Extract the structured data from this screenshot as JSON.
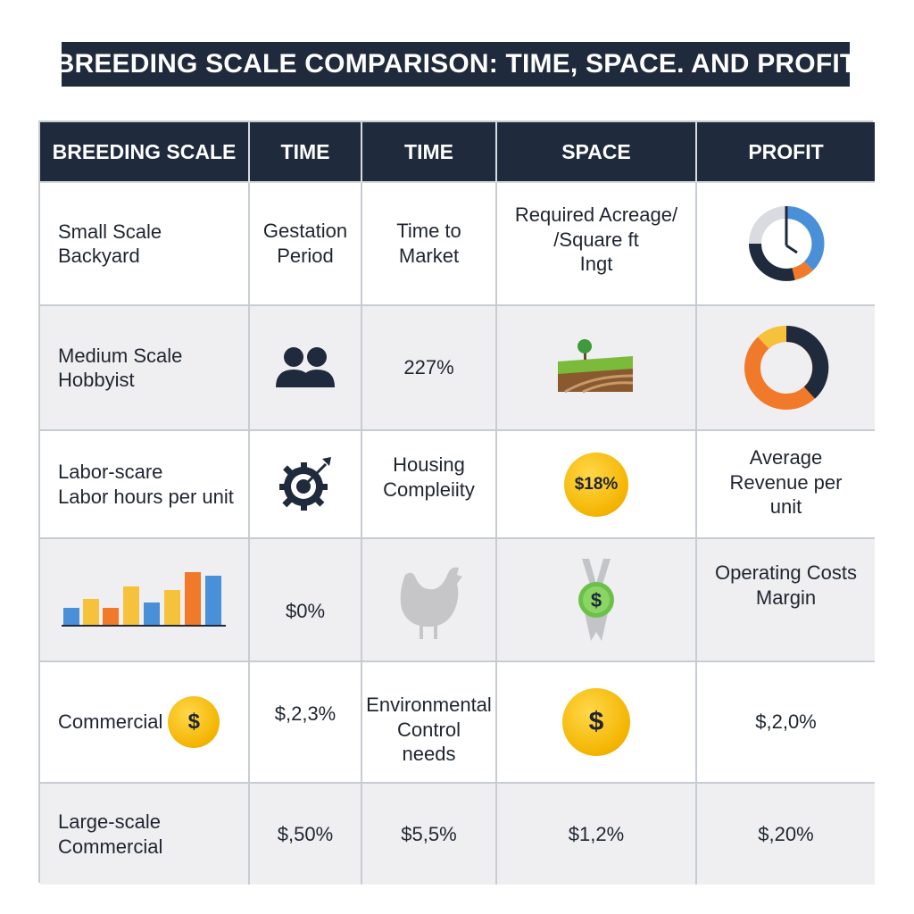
{
  "title": "BREEDING SCALE COMPARISON: TIME, SPACE. AND PROFIT",
  "headers": [
    "BREEDING SCALE",
    "TIME",
    "TIME",
    "SPACE",
    "PROFIT"
  ],
  "rows": [
    {
      "scale": [
        "Small Scale",
        "Backyard"
      ],
      "c1": [
        "Gestation",
        "Period"
      ],
      "c2": [
        "Time to",
        "Market"
      ],
      "c3": [
        "Required Acreage/",
        "/Square ft",
        "Ingt"
      ],
      "c4_icon": "donut-chart-clock-icon"
    },
    {
      "scale": [
        "Medium Scale",
        "Hobbyist"
      ],
      "c1_icon": "people-icon",
      "c2": "227%",
      "c3_icon": "farmland-tree-icon",
      "c4_icon": "donut-chart-icon"
    },
    {
      "scale": [
        "Labor-scare",
        "Labor hours per unit"
      ],
      "c1_icon": "gear-target-icon",
      "c2": [
        "Housing",
        "Compleiity"
      ],
      "c3": "$18%",
      "c4": [
        "Average",
        "Revenue per",
        "unit"
      ]
    },
    {
      "scale_icon": "bar-chart-icon",
      "c1": "$0%",
      "c2_icon": "chicken-icon",
      "c3_icon": "dollar-award-icon",
      "c4": [
        "Operating Costs",
        "Margin"
      ]
    },
    {
      "scale": "Commercial",
      "scale_coin": "$",
      "c1": "$,2,3%",
      "c2": [
        "Environmental",
        "Control",
        "needs"
      ],
      "c3_coin": "$",
      "c4": "$,2,0%"
    },
    {
      "scale": [
        "Large-scale",
        "Commercial"
      ],
      "c1": "$,50%",
      "c2": "$5,5%",
      "c3": "$1,2%",
      "c4": "$,20%"
    }
  ],
  "colors": {
    "header": "#1f2a3c",
    "blue": "#4a90d9",
    "orange": "#f07a2a",
    "yellow": "#f6c13b",
    "navy": "#1f2a3c",
    "gold": "#f4b400",
    "green": "#6cc04a"
  }
}
